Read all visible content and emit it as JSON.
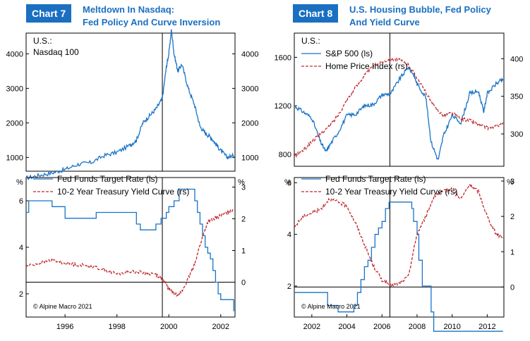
{
  "chart7": {
    "badge": "Chart 7",
    "title_line1": "Meltdown In Nasdaq:",
    "title_line2": "Fed Policy And Curve Inversion"
  },
  "chart8": {
    "badge": "Chart 8",
    "title_line1": "U.S. Housing Bubble, Fed Policy",
    "title_line2": "And Yield Curve"
  },
  "colors": {
    "blue": "#1a73c7",
    "red": "#c0282d",
    "brand": "#1a6fc1"
  },
  "chart_data": [
    {
      "id": "c7_top",
      "type": "line",
      "label_line1": "U.S.:",
      "label_line2": "Nasdaq 100",
      "x": [
        1994.5,
        1995.0,
        1995.5,
        1996.0,
        1996.5,
        1997.0,
        1997.5,
        1998.0,
        1998.5,
        1998.75,
        1999.0,
        1999.25,
        1999.5,
        1999.75,
        1999.9,
        2000.0,
        2000.1,
        2000.2,
        2000.35,
        2000.5,
        2000.75,
        2001.0,
        2001.2,
        2001.4,
        2001.6,
        2001.8,
        2002.0,
        2002.25,
        2002.5
      ],
      "series": [
        {
          "name": "Nasdaq 100",
          "color": "blue",
          "axis": "left",
          "values": [
            400,
            480,
            550,
            650,
            800,
            850,
            1050,
            1150,
            1350,
            1500,
            2000,
            2200,
            2400,
            2700,
            3600,
            4000,
            4700,
            4000,
            3500,
            3700,
            3000,
            2500,
            1900,
            1700,
            1600,
            1400,
            1200,
            1000,
            1050
          ]
        }
      ],
      "ylim": [
        600,
        4600
      ],
      "yticks_left": [
        "1000",
        "2000",
        "3000",
        "4000"
      ],
      "yticks_right": [
        "1000",
        "2000",
        "3000",
        "4000"
      ],
      "xlim": [
        1994.5,
        2002.55
      ],
      "vline": 1999.75
    },
    {
      "id": "c7_bottom",
      "type": "line",
      "unit_left": "%",
      "unit_right": "%",
      "legend": [
        "Fed Funds Target Rate (ls)",
        "10-2 Year Treasury Yield Curve (rs)"
      ],
      "series": [
        {
          "name": "Fed Funds Target Rate",
          "color": "blue",
          "axis": "left",
          "style": "step",
          "x": [
            1994.5,
            1994.6,
            1995.0,
            1995.5,
            1996.0,
            1997.2,
            1998.75,
            1998.9,
            1999.0,
            1999.5,
            1999.7,
            1999.9,
            2000.0,
            2000.2,
            2000.4,
            2000.9,
            2001.0,
            2001.1,
            2001.2,
            2001.3,
            2001.4,
            2001.5,
            2001.6,
            2001.7,
            2001.8,
            2001.9,
            2002.0,
            2002.5
          ],
          "values": [
            5.5,
            6.0,
            6.0,
            5.75,
            5.25,
            5.5,
            5.0,
            4.75,
            4.75,
            5.0,
            5.25,
            5.5,
            5.75,
            6.0,
            6.5,
            6.5,
            6.0,
            5.5,
            5.0,
            4.5,
            4.0,
            3.75,
            3.5,
            3.0,
            2.5,
            2.0,
            1.75,
            1.25
          ]
        },
        {
          "name": "10-2 Year Treasury Yield Curve",
          "color": "red",
          "axis": "right",
          "style": "dashed",
          "x": [
            1994.5,
            1995.0,
            1995.5,
            1996.0,
            1996.5,
            1997.0,
            1997.5,
            1998.0,
            1998.5,
            1999.0,
            1999.5,
            1999.75,
            2000.0,
            2000.25,
            2000.5,
            2000.75,
            2001.0,
            2001.25,
            2001.5,
            2001.75,
            2002.0,
            2002.25,
            2002.5
          ],
          "values": [
            0.5,
            0.6,
            0.7,
            0.6,
            0.55,
            0.5,
            0.4,
            0.25,
            0.35,
            0.3,
            0.25,
            0.1,
            -0.2,
            -0.4,
            -0.3,
            0.1,
            0.6,
            1.3,
            1.9,
            2.0,
            2.1,
            2.2,
            2.3
          ]
        }
      ],
      "ylim_left": [
        1,
        7
      ],
      "ylim_right": [
        -1.1,
        3.3
      ],
      "yticks_left": [
        "2",
        "4",
        "6"
      ],
      "yticks_right": [
        "0",
        "1",
        "2",
        "3"
      ],
      "xlim": [
        1994.5,
        2002.55
      ],
      "xticks": [
        "1996",
        "1998",
        "2000",
        "2002"
      ],
      "vline": 1999.75,
      "hline_right": 0,
      "copyright": "© Alpine Macro 2021"
    },
    {
      "id": "c8_top",
      "type": "line",
      "label_line1": "U.S.:",
      "legend": [
        "S&P 500 (ls)",
        "Home Price Index (rs)"
      ],
      "series": [
        {
          "name": "S&P 500",
          "color": "blue",
          "axis": "left",
          "x": [
            2001.0,
            2001.5,
            2002.0,
            2002.5,
            2002.8,
            2003.0,
            2003.5,
            2004.0,
            2004.5,
            2005.0,
            2005.5,
            2006.0,
            2006.5,
            2007.0,
            2007.5,
            2007.8,
            2008.0,
            2008.5,
            2008.8,
            2009.2,
            2009.5,
            2010.0,
            2010.5,
            2011.0,
            2011.5,
            2011.8,
            2012.0,
            2012.5,
            2012.9
          ],
          "values": [
            1200,
            1150,
            1100,
            900,
            820,
            870,
            980,
            1120,
            1130,
            1200,
            1210,
            1290,
            1300,
            1420,
            1520,
            1460,
            1380,
            1270,
            900,
            750,
            950,
            1120,
            1060,
            1300,
            1320,
            1150,
            1300,
            1380,
            1420
          ]
        },
        {
          "name": "Home Price Index",
          "color": "red",
          "axis": "right",
          "style": "dashed",
          "x": [
            2001.0,
            2001.5,
            2002.0,
            2002.5,
            2003.0,
            2003.5,
            2004.0,
            2004.5,
            2005.0,
            2005.5,
            2006.0,
            2006.5,
            2007.0,
            2007.5,
            2008.0,
            2008.5,
            2009.0,
            2009.5,
            2010.0,
            2010.5,
            2011.0,
            2011.5,
            2012.0,
            2012.5,
            2012.9
          ],
          "values": [
            270,
            278,
            290,
            300,
            310,
            325,
            345,
            362,
            378,
            390,
            396,
            400,
            398,
            392,
            375,
            355,
            335,
            325,
            328,
            320,
            318,
            313,
            308,
            310,
            315
          ]
        }
      ],
      "ylim_left": [
        700,
        1800
      ],
      "ylim_right": [
        257,
        434
      ],
      "yticks_left": [
        "800",
        "1200",
        "1600"
      ],
      "yticks_right": [
        "300",
        "350",
        "400"
      ],
      "xlim": [
        2001.0,
        2012.95
      ],
      "vline": 2006.45
    },
    {
      "id": "c8_bottom",
      "type": "line",
      "unit_left": "%",
      "unit_right": "%",
      "legend": [
        "Fed Funds Target Rate (ls)",
        "10-2 Year Treasury Yield Curve (rs)"
      ],
      "series": [
        {
          "name": "Fed Funds Target Rate",
          "color": "blue",
          "axis": "left",
          "style": "step",
          "x": [
            2001.0,
            2001.8,
            2002.0,
            2002.9,
            2003.5,
            2004.4,
            2004.6,
            2004.8,
            2005.0,
            2005.2,
            2005.4,
            2005.6,
            2005.8,
            2006.0,
            2006.2,
            2006.4,
            2007.7,
            2007.8,
            2008.0,
            2008.1,
            2008.3,
            2008.8,
            2008.95,
            2012.9
          ],
          "values": [
            1.75,
            1.75,
            1.75,
            1.25,
            1.0,
            1.25,
            1.75,
            2.25,
            2.75,
            3.0,
            3.5,
            4.0,
            4.25,
            4.5,
            5.0,
            5.25,
            5.0,
            4.5,
            4.0,
            3.0,
            2.0,
            1.0,
            0.25,
            0.25
          ]
        },
        {
          "name": "10-2 Year Treasury Yield Curve",
          "color": "red",
          "axis": "right",
          "style": "dashed",
          "x": [
            2001.0,
            2001.5,
            2002.0,
            2002.5,
            2003.0,
            2003.5,
            2004.0,
            2004.5,
            2005.0,
            2005.5,
            2006.0,
            2006.5,
            2007.0,
            2007.5,
            2008.0,
            2008.5,
            2009.0,
            2009.5,
            2010.0,
            2010.5,
            2011.0,
            2011.5,
            2012.0,
            2012.5,
            2012.9
          ],
          "values": [
            1.7,
            2.0,
            2.1,
            2.2,
            2.5,
            2.4,
            2.3,
            1.8,
            1.2,
            0.6,
            0.2,
            0.05,
            0.1,
            0.3,
            1.5,
            2.0,
            2.6,
            2.7,
            2.8,
            2.5,
            2.9,
            2.7,
            2.0,
            1.5,
            1.4
          ]
        }
      ],
      "ylim_left": [
        0.8,
        6.2
      ],
      "ylim_right": [
        -0.85,
        3.1
      ],
      "yticks_left": [
        "2",
        "4",
        "6"
      ],
      "yticks_right": [
        "0",
        "1",
        "2",
        "3"
      ],
      "xlim": [
        2001.0,
        2012.95
      ],
      "xticks": [
        "2002",
        "2004",
        "2006",
        "2008",
        "2010",
        "2012"
      ],
      "vline": 2006.45,
      "hline_right": 0,
      "copyright": "© Alpine Macro 2021"
    }
  ]
}
